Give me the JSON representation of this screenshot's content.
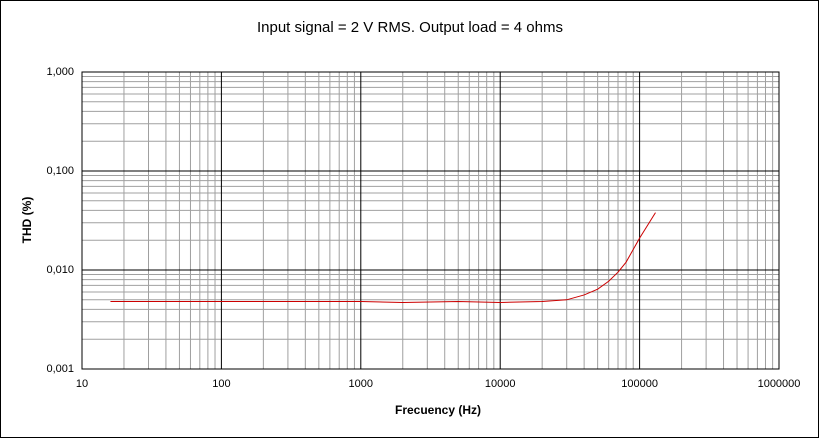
{
  "chart_data": {
    "type": "line",
    "title": "Input signal = 2 V RMS. Output load = 4 ohms",
    "x_label": "Frecuency (Hz)",
    "y_label": "THD (%)",
    "x_scale": "log",
    "y_scale": "log",
    "grid": true,
    "minor_grid": true,
    "xlim": [
      10,
      1000000
    ],
    "xticks": [
      10,
      100,
      1000,
      10000,
      100000,
      1000000
    ],
    "ylim": [
      0.001,
      1
    ],
    "yticks": [
      {
        "value": 0.001,
        "label": "0,001"
      },
      {
        "value": 0.01,
        "label": "0,010"
      },
      {
        "value": 0.1,
        "label": "0,100"
      },
      {
        "value": 1,
        "label": "1,000"
      }
    ],
    "x": [
      16,
      20,
      100,
      1000,
      2000,
      5000,
      10000,
      20000,
      30000,
      40000,
      50000,
      60000,
      70000,
      80000,
      100000,
      130000
    ],
    "series": [
      {
        "color": "#cc0000",
        "values": [
          0.0048,
          0.0048,
          0.0048,
          0.0048,
          0.0047,
          0.0048,
          0.0047,
          0.0048,
          0.005,
          0.0056,
          0.0064,
          0.0077,
          0.0095,
          0.012,
          0.021,
          0.038
        ]
      }
    ]
  }
}
